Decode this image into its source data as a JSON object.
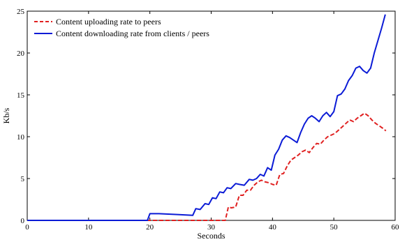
{
  "chart_data": {
    "type": "line",
    "title": "",
    "xlabel": "Seconds",
    "ylabel": "Kb/s",
    "xlim": [
      0,
      60
    ],
    "ylim": [
      0,
      25
    ],
    "xticks": [
      "0",
      "10",
      "20",
      "30",
      "40",
      "50",
      "60"
    ],
    "yticks": [
      "0",
      "5",
      "10",
      "15",
      "20",
      "25"
    ],
    "grid": false,
    "legend_position": "top-left",
    "series": [
      {
        "name": "Content uploading rate to peers",
        "color": "#e02020",
        "style": "dashed",
        "x": [
          0,
          20,
          28,
          32.3,
          32.8,
          33.3,
          34,
          34.6,
          35.2,
          35.8,
          36.4,
          37,
          37.6,
          38.2,
          38.8,
          39.4,
          40,
          40.6,
          41.2,
          41.8,
          42.4,
          43,
          43.6,
          44.2,
          44.8,
          45.4,
          46,
          46.6,
          47.2,
          47.8,
          48.4,
          49,
          49.6,
          50.2,
          50.8,
          51.4,
          52,
          52.6,
          53.2,
          53.8,
          54.4,
          55,
          55.6,
          56.2,
          56.8,
          57.4,
          58,
          58.5
        ],
        "y": [
          0,
          0,
          0,
          0,
          1.6,
          1.5,
          1.6,
          3.0,
          3.0,
          3.6,
          3.6,
          4.2,
          4.6,
          4.8,
          4.6,
          4.5,
          4.3,
          4.2,
          5.5,
          5.6,
          6.5,
          7.2,
          7.5,
          7.8,
          8.2,
          8.4,
          8.1,
          8.7,
          9.2,
          9.1,
          9.6,
          10.0,
          10.2,
          10.4,
          10.8,
          11.2,
          11.6,
          12.0,
          11.8,
          12.2,
          12.5,
          12.8,
          12.5,
          12.0,
          11.6,
          11.3,
          11.0,
          10.7
        ]
      },
      {
        "name": "Content downloading rate from clients / peers",
        "color": "#0b1bd6",
        "style": "solid",
        "x": [
          0,
          19.6,
          20,
          21.5,
          24.5,
          27,
          27.5,
          28.2,
          29,
          29.6,
          30.2,
          30.8,
          31.4,
          32,
          32.6,
          33.2,
          34,
          34.6,
          35.4,
          36.2,
          36.8,
          37.4,
          38,
          38.6,
          39.2,
          39.8,
          40.4,
          41,
          41.6,
          42.2,
          42.8,
          43.4,
          44,
          44.6,
          45.2,
          45.8,
          46.4,
          47,
          47.6,
          48.2,
          48.8,
          49.4,
          50,
          50.6,
          51.2,
          51.8,
          52.4,
          53,
          53.6,
          54.2,
          54.8,
          55.4,
          56,
          56.6,
          57.2,
          57.8,
          58.4
        ],
        "y": [
          0,
          0,
          0.8,
          0.8,
          0.7,
          0.6,
          1.4,
          1.3,
          2.0,
          1.9,
          2.7,
          2.6,
          3.4,
          3.3,
          3.9,
          3.8,
          4.4,
          4.3,
          4.2,
          4.9,
          4.8,
          5.0,
          5.5,
          5.3,
          6.3,
          6.0,
          7.8,
          8.5,
          9.6,
          10.1,
          9.9,
          9.6,
          9.3,
          10.5,
          11.5,
          12.2,
          12.5,
          12.2,
          11.8,
          12.5,
          12.9,
          12.4,
          13.0,
          14.9,
          15.1,
          15.7,
          16.7,
          17.3,
          18.2,
          18.4,
          17.9,
          17.6,
          18.2,
          20.0,
          21.5,
          23.0,
          24.6
        ]
      }
    ]
  }
}
